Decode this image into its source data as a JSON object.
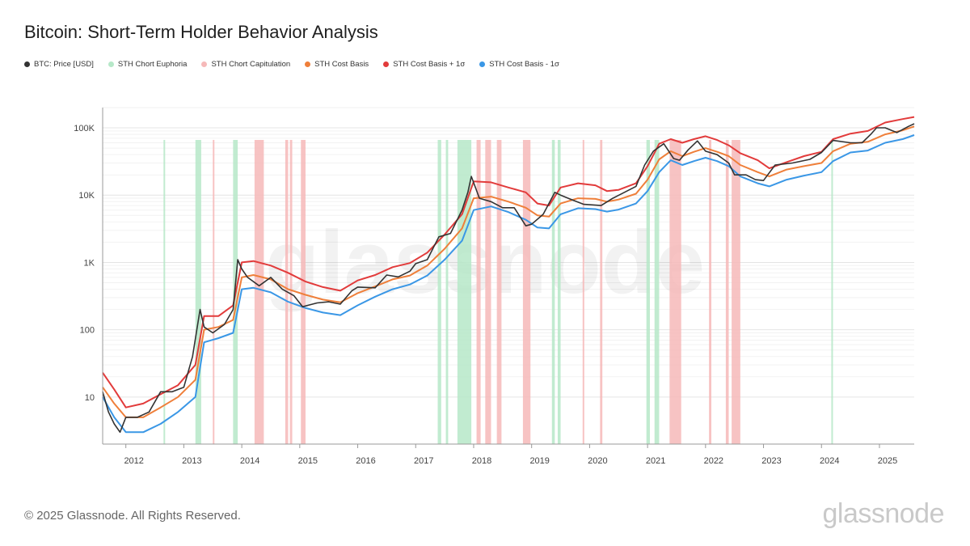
{
  "title": "Bitcoin: Short-Term Holder Behavior Analysis",
  "legend": [
    {
      "label": "BTC: Price [USD]",
      "color": "#333333"
    },
    {
      "label": "STH Chort Euphoria",
      "color": "#b6e8c8"
    },
    {
      "label": "STH Chort Capitulation",
      "color": "#f6b9b9"
    },
    {
      "label": "STH Cost Basis",
      "color": "#ef7f3a"
    },
    {
      "label": "STH Cost Basis + 1σ",
      "color": "#e23b3b"
    },
    {
      "label": "STH Cost Basis - 1σ",
      "color": "#3a97e6"
    }
  ],
  "watermark": "glassnode",
  "footer": "© 2025 Glassnode. All Rights Reserved.",
  "logo": "glassnode",
  "chart_data": {
    "type": "line",
    "y_scale": "log",
    "ylim": [
      2,
      200000
    ],
    "xlim": [
      2011.6,
      2025.6
    ],
    "y_ticks": [
      {
        "value": 10,
        "label": "10"
      },
      {
        "value": 100,
        "label": "100"
      },
      {
        "value": 1000,
        "label": "1K"
      },
      {
        "value": 10000,
        "label": "10K"
      },
      {
        "value": 100000,
        "label": "100K"
      }
    ],
    "x_ticks": [
      "2012",
      "2013",
      "2014",
      "2015",
      "2016",
      "2017",
      "2018",
      "2019",
      "2020",
      "2021",
      "2022",
      "2023",
      "2024",
      "2025"
    ],
    "grid": true,
    "series": [
      {
        "name": "BTC: Price [USD]",
        "color": "#333333",
        "x": [
          2011.6,
          2011.7,
          2011.8,
          2011.9,
          2012.0,
          2012.2,
          2012.4,
          2012.6,
          2012.8,
          2013.0,
          2013.15,
          2013.28,
          2013.35,
          2013.5,
          2013.7,
          2013.85,
          2013.93,
          2014.0,
          2014.1,
          2014.3,
          2014.5,
          2014.7,
          2014.9,
          2015.05,
          2015.3,
          2015.5,
          2015.7,
          2015.9,
          2016.0,
          2016.3,
          2016.5,
          2016.7,
          2016.9,
          2017.0,
          2017.2,
          2017.4,
          2017.6,
          2017.8,
          2017.9,
          2017.96,
          2018.1,
          2018.3,
          2018.5,
          2018.7,
          2018.9,
          2019.0,
          2019.2,
          2019.4,
          2019.5,
          2019.7,
          2019.9,
          2020.2,
          2020.4,
          2020.6,
          2020.8,
          2020.95,
          2021.1,
          2021.28,
          2021.45,
          2021.55,
          2021.7,
          2021.86,
          2022.0,
          2022.2,
          2022.4,
          2022.5,
          2022.7,
          2022.86,
          2023.0,
          2023.2,
          2023.5,
          2023.8,
          2024.0,
          2024.2,
          2024.5,
          2024.7,
          2024.85,
          2024.95,
          2025.1,
          2025.3,
          2025.5,
          2025.6
        ],
        "values": [
          12,
          6,
          4,
          3,
          5,
          5,
          6,
          12,
          12,
          14,
          40,
          200,
          110,
          90,
          120,
          200,
          1100,
          800,
          600,
          450,
          600,
          400,
          320,
          220,
          250,
          260,
          240,
          380,
          430,
          420,
          650,
          610,
          740,
          960,
          1100,
          2400,
          2700,
          6000,
          11000,
          19000,
          9000,
          8000,
          6500,
          6500,
          3500,
          3700,
          5200,
          11000,
          10000,
          8500,
          7300,
          7000,
          9000,
          11000,
          13500,
          28000,
          45000,
          58000,
          35000,
          33000,
          47000,
          64000,
          45000,
          40000,
          30000,
          20000,
          20000,
          17000,
          16500,
          28000,
          30000,
          34000,
          43000,
          65000,
          60000,
          60000,
          80000,
          100000,
          100000,
          85000,
          105000,
          115000
        ]
      },
      {
        "name": "STH Cost Basis",
        "color": "#ef7f3a",
        "x": [
          2011.6,
          2011.8,
          2012.0,
          2012.3,
          2012.6,
          2012.9,
          2013.2,
          2013.35,
          2013.6,
          2013.85,
          2014.0,
          2014.2,
          2014.5,
          2014.8,
          2015.1,
          2015.4,
          2015.7,
          2016.0,
          2016.3,
          2016.6,
          2016.9,
          2017.2,
          2017.5,
          2017.8,
          2018.0,
          2018.3,
          2018.6,
          2018.9,
          2019.1,
          2019.3,
          2019.5,
          2019.8,
          2020.1,
          2020.3,
          2020.5,
          2020.8,
          2021.0,
          2021.2,
          2021.4,
          2021.6,
          2021.8,
          2022.0,
          2022.2,
          2022.4,
          2022.6,
          2022.9,
          2023.1,
          2023.4,
          2023.7,
          2024.0,
          2024.2,
          2024.5,
          2024.8,
          2025.1,
          2025.4,
          2025.6
        ],
        "values": [
          14,
          8,
          5,
          5,
          7,
          10,
          18,
          100,
          110,
          140,
          600,
          650,
          560,
          400,
          330,
          280,
          255,
          350,
          440,
          560,
          640,
          900,
          1600,
          3200,
          9000,
          9500,
          8000,
          6500,
          5000,
          4800,
          7500,
          9000,
          8800,
          8000,
          8600,
          10500,
          17000,
          34000,
          45000,
          38000,
          44000,
          50000,
          44000,
          38000,
          28000,
          22000,
          19000,
          24000,
          27000,
          30000,
          45000,
          58000,
          62000,
          80000,
          92000,
          105000
        ]
      },
      {
        "name": "STH Cost Basis + 1σ",
        "color": "#e23b3b",
        "x": [
          2011.6,
          2011.8,
          2012.0,
          2012.3,
          2012.6,
          2012.9,
          2013.2,
          2013.35,
          2013.6,
          2013.85,
          2014.0,
          2014.2,
          2014.5,
          2014.8,
          2015.1,
          2015.4,
          2015.7,
          2016.0,
          2016.3,
          2016.6,
          2016.9,
          2017.2,
          2017.5,
          2017.8,
          2018.0,
          2018.3,
          2018.6,
          2018.9,
          2019.1,
          2019.3,
          2019.5,
          2019.8,
          2020.1,
          2020.3,
          2020.5,
          2020.8,
          2021.0,
          2021.2,
          2021.4,
          2021.6,
          2021.8,
          2022.0,
          2022.2,
          2022.4,
          2022.6,
          2022.9,
          2023.1,
          2023.4,
          2023.7,
          2024.0,
          2024.2,
          2024.5,
          2024.8,
          2025.1,
          2025.4,
          2025.6
        ],
        "values": [
          23,
          13,
          7,
          8,
          11,
          15,
          30,
          160,
          160,
          230,
          1000,
          1050,
          900,
          700,
          520,
          430,
          380,
          540,
          650,
          850,
          980,
          1400,
          2600,
          5200,
          16000,
          15500,
          13000,
          11000,
          7500,
          7000,
          13000,
          15000,
          14000,
          11500,
          12000,
          15000,
          27000,
          58000,
          68000,
          60000,
          68000,
          75000,
          66000,
          55000,
          42000,
          33000,
          25000,
          31000,
          38000,
          44000,
          68000,
          82000,
          90000,
          120000,
          135000,
          145000
        ]
      },
      {
        "name": "STH Cost Basis - 1σ",
        "color": "#3a97e6",
        "x": [
          2011.6,
          2011.8,
          2012.0,
          2012.3,
          2012.6,
          2012.9,
          2013.2,
          2013.35,
          2013.6,
          2013.85,
          2014.0,
          2014.2,
          2014.5,
          2014.8,
          2015.1,
          2015.4,
          2015.7,
          2016.0,
          2016.3,
          2016.6,
          2016.9,
          2017.2,
          2017.5,
          2017.8,
          2018.0,
          2018.3,
          2018.6,
          2018.9,
          2019.1,
          2019.3,
          2019.5,
          2019.8,
          2020.1,
          2020.3,
          2020.5,
          2020.8,
          2021.0,
          2021.2,
          2021.4,
          2021.6,
          2021.8,
          2022.0,
          2022.2,
          2022.4,
          2022.6,
          2022.9,
          2023.1,
          2023.4,
          2023.7,
          2024.0,
          2024.2,
          2024.5,
          2024.8,
          2025.1,
          2025.4,
          2025.6
        ],
        "values": [
          10,
          5,
          3,
          3,
          4,
          6,
          10,
          65,
          75,
          90,
          400,
          420,
          360,
          260,
          210,
          180,
          165,
          230,
          310,
          400,
          470,
          640,
          1100,
          2100,
          6000,
          6800,
          5600,
          4300,
          3300,
          3200,
          5200,
          6400,
          6200,
          5700,
          6100,
          7500,
          11500,
          22000,
          33000,
          28000,
          32000,
          36000,
          32000,
          27000,
          19000,
          15000,
          13500,
          17000,
          19500,
          22000,
          32000,
          43000,
          46000,
          60000,
          68000,
          78000
        ]
      }
    ],
    "euphoria_periods": [
      [
        2013.2,
        2013.3
      ],
      [
        2013.85,
        2013.93
      ],
      [
        2017.38,
        2017.44
      ],
      [
        2017.52,
        2017.56
      ],
      [
        2017.72,
        2017.96
      ],
      [
        2019.35,
        2019.4
      ],
      [
        2019.45,
        2019.5
      ],
      [
        2020.98,
        2021.04
      ],
      [
        2021.12,
        2021.2
      ],
      [
        2024.17,
        2024.19
      ],
      [
        2012.65,
        2012.67
      ]
    ],
    "capitulation_periods": [
      [
        2013.5,
        2013.52
      ],
      [
        2014.22,
        2014.38
      ],
      [
        2014.75,
        2014.8
      ],
      [
        2014.83,
        2014.87
      ],
      [
        2015.02,
        2015.1
      ],
      [
        2018.05,
        2018.12
      ],
      [
        2018.2,
        2018.3
      ],
      [
        2018.4,
        2018.48
      ],
      [
        2018.85,
        2018.98
      ],
      [
        2019.88,
        2019.9
      ],
      [
        2020.18,
        2020.22
      ],
      [
        2021.38,
        2021.58
      ],
      [
        2022.06,
        2022.1
      ],
      [
        2022.35,
        2022.4
      ],
      [
        2022.45,
        2022.6
      ]
    ]
  }
}
